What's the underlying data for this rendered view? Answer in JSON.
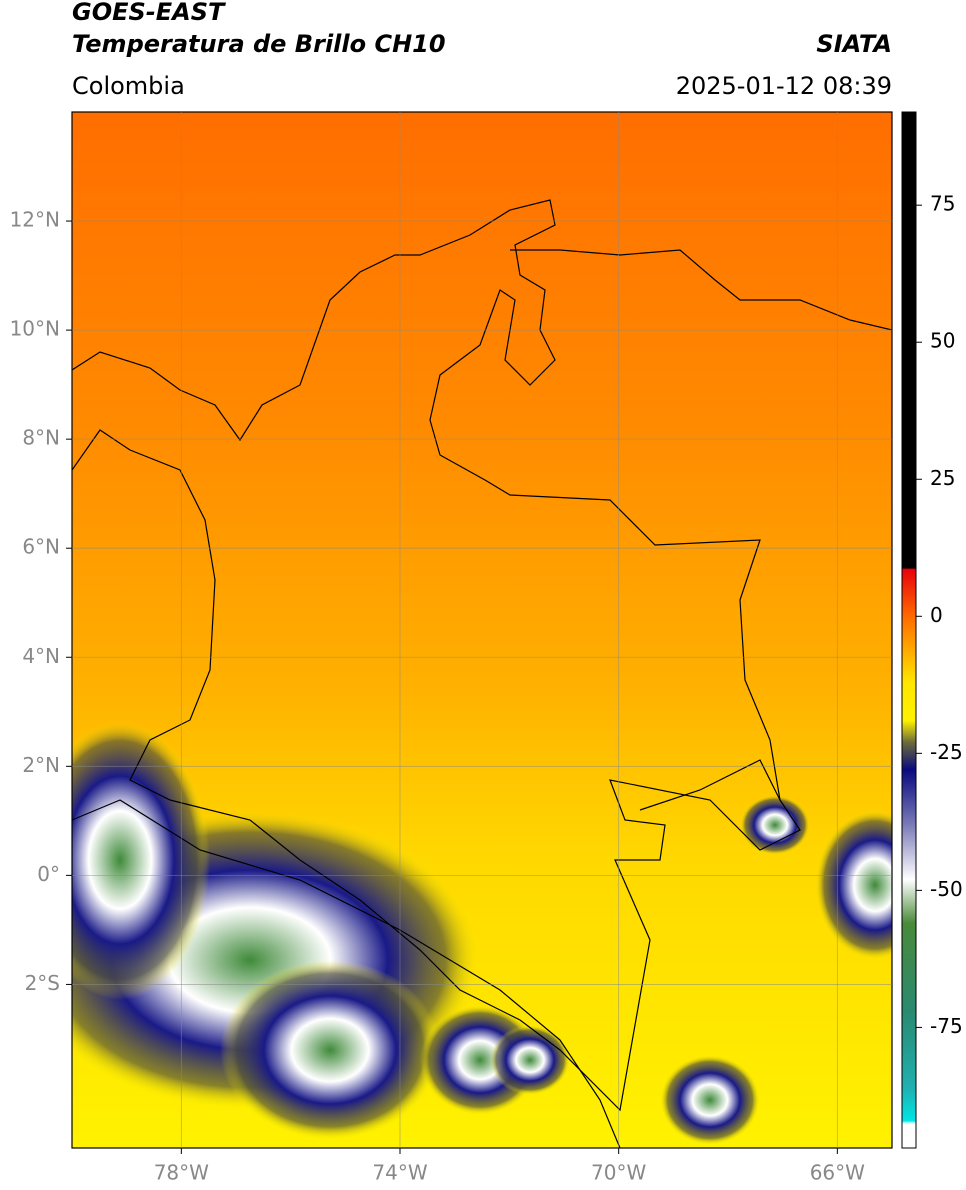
{
  "header": {
    "title": "GOES-EAST",
    "subtitle": "Temperatura de Brillo CH10",
    "region": "Colombia",
    "source": "SIATA",
    "timestamp": "2025-01-12 08:39"
  },
  "map": {
    "xlim": [
      -80,
      -65
    ],
    "ylim": [
      -5,
      14
    ],
    "xticks": [
      {
        "value": -78,
        "label": "78°W"
      },
      {
        "value": -74,
        "label": "74°W"
      },
      {
        "value": -70,
        "label": "70°W"
      },
      {
        "value": -66,
        "label": "66°W"
      }
    ],
    "yticks": [
      {
        "value": 12,
        "label": "12°N"
      },
      {
        "value": 10,
        "label": "10°N"
      },
      {
        "value": 8,
        "label": "8°N"
      },
      {
        "value": 6,
        "label": "6°N"
      },
      {
        "value": 4,
        "label": "4°N"
      },
      {
        "value": 2,
        "label": "2°N"
      },
      {
        "value": 0,
        "label": "0°"
      },
      {
        "value": -2,
        "label": "2°S"
      }
    ],
    "grid": true
  },
  "colorbar": {
    "ylim": [
      -97,
      92
    ],
    "yticks": [
      75,
      50,
      25,
      0,
      -25,
      -50,
      -75
    ],
    "stops": [
      {
        "value": 92,
        "color": "#000000"
      },
      {
        "value": 8.8,
        "color": "#000000"
      },
      {
        "value": 8.6,
        "color": "#e8000b"
      },
      {
        "value": 0,
        "color": "#ff6a00"
      },
      {
        "value": -12,
        "color": "#ffe600"
      },
      {
        "value": -19,
        "color": "#fff200"
      },
      {
        "value": -23,
        "color": "#6b6b3a"
      },
      {
        "value": -28,
        "color": "#0a0a80"
      },
      {
        "value": -38,
        "color": "#7a7ab8"
      },
      {
        "value": -48,
        "color": "#ffffff"
      },
      {
        "value": -56,
        "color": "#4a8a3a"
      },
      {
        "value": -72,
        "color": "#2a8a70"
      },
      {
        "value": -86,
        "color": "#20b0b0"
      },
      {
        "value": -92,
        "color": "#00e5e5"
      },
      {
        "value": -92.6,
        "color": "#ffffff"
      },
      {
        "value": -97,
        "color": "#ffffff"
      }
    ]
  }
}
